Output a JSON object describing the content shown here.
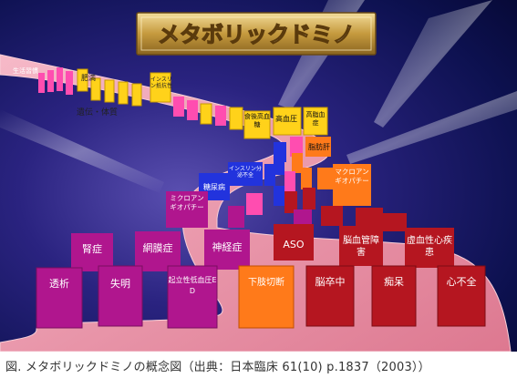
{
  "title": "メタボリックドミノ",
  "track_labels": {
    "lifestyle": "生活習慣",
    "obesity": "肥満",
    "insulin_resistance": "インスリン抵抗性",
    "heredity": "遺伝・体質"
  },
  "stage_labels": {
    "postprandial_hyperglycemia": "食後高血糖",
    "hypertension": "高血圧",
    "hyperlipidemia": "高脂血症",
    "fatty_liver": "脂肪肝",
    "insulin_secretion_deficiency": "インスリン分泌不全",
    "diabetes": "糖尿病",
    "macroangiopathy": "マクロアンギオパチー",
    "microangiopathy": "ミクロアンギオパチー"
  },
  "complication_labels": {
    "nephropathy": "腎症",
    "retinopathy": "網膜症",
    "neuropathy": "神経症",
    "aso": "ASO",
    "cerebrovascular": "脳血管障害",
    "ischemic_heart": "虚血性心疾患",
    "dialysis": "透析",
    "blindness": "失明",
    "ed": "起立性低血圧ED",
    "amputation": "下肢切断",
    "stroke": "脳卒中",
    "dementia": "痴呆",
    "heart_failure": "心不全"
  },
  "caption": "図. メタボリックドミノの概念図（出典：日本臨床 61(10) p.1837（2003））",
  "colors": {
    "background_dark": "#070a3c",
    "background_mid": "#2a1f78",
    "track": "#e98aa2",
    "domino_pink": "#ff4db0",
    "domino_yellow": "#ffd21a",
    "domino_orange": "#ff7a1a",
    "domino_blue": "#2233dd",
    "domino_magenta": "#b0168e",
    "domino_red": "#b51620",
    "title_gold": "#c9a24a"
  }
}
